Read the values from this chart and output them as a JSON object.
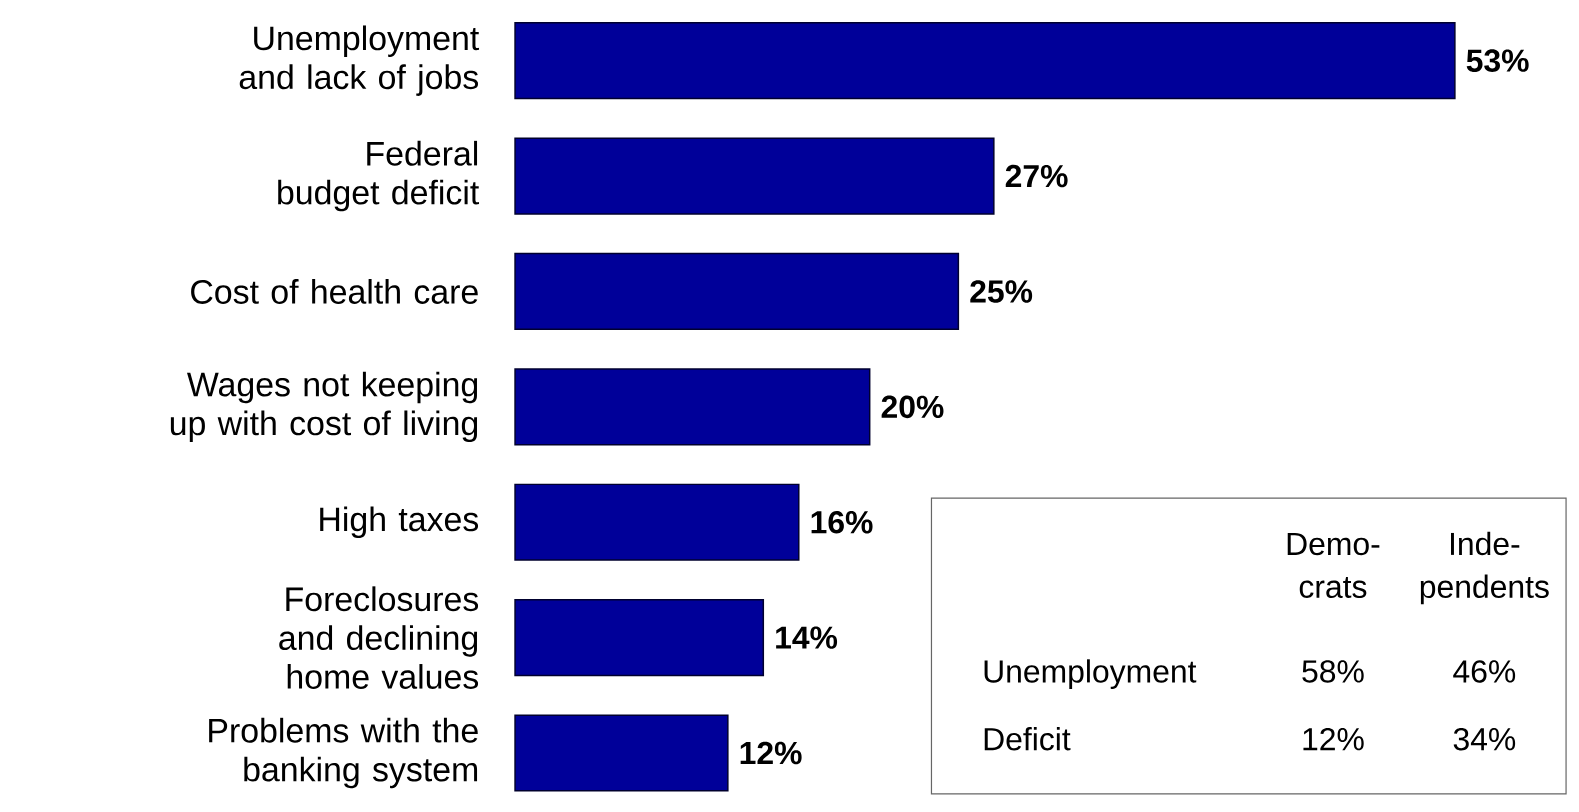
{
  "chart_data": {
    "type": "bar",
    "orientation": "horizontal",
    "categories": [
      "Unemployment and lack of jobs",
      "Federal budget deficit",
      "Cost of health care",
      "Wages not keeping up with cost of living",
      "High taxes",
      "Foreclosures and declining home values",
      "Problems with the banking system"
    ],
    "values": [
      53,
      27,
      25,
      20,
      16,
      14,
      12
    ],
    "value_labels": [
      "53%",
      "27%",
      "25%",
      "20%",
      "16%",
      "14%",
      "12%"
    ],
    "color": "#000099",
    "annotations": [
      "Demo-",
      "crats",
      "Inde-",
      "pendents",
      "Unemployment",
      "58%",
      "46%",
      "Deficit",
      "12%",
      "34%"
    ]
  }
}
